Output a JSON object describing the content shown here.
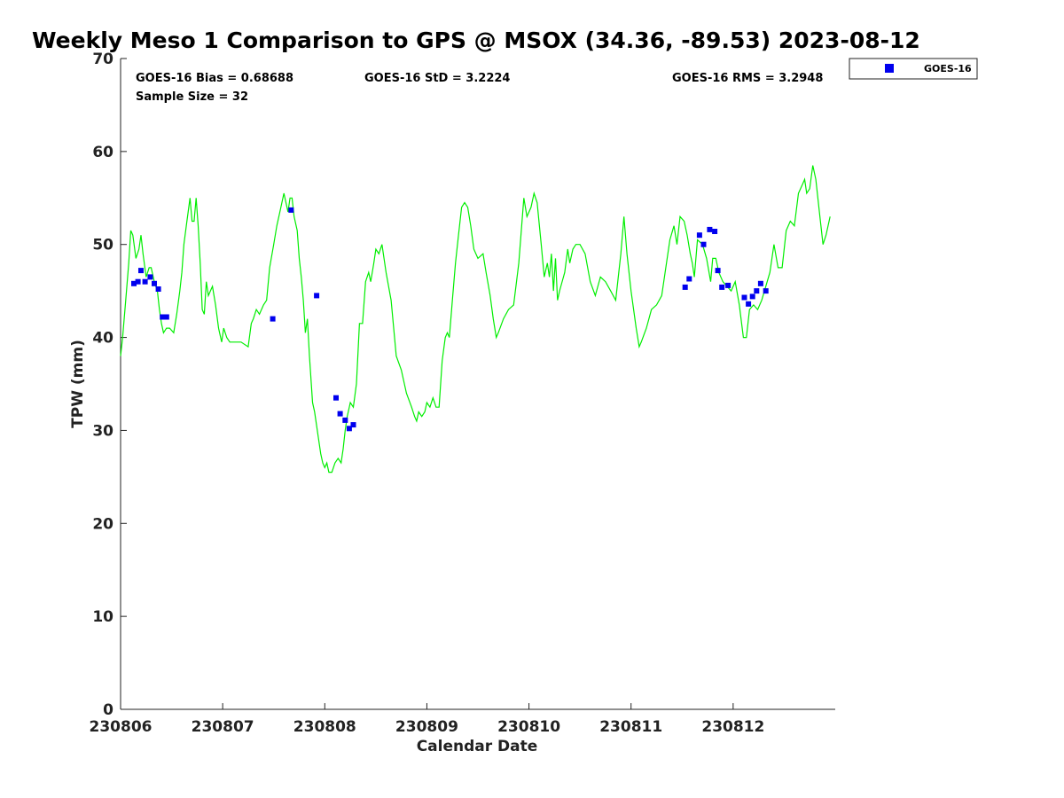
{
  "chart_data": {
    "type": "scatter",
    "title": "Weekly Meso 1 Comparison to GPS @ MSOX (34.36, -89.53) 2023-08-12",
    "xlabel": "Calendar Date",
    "ylabel": "TPW (mm)",
    "xlim": [
      0,
      7
    ],
    "ylim": [
      0,
      70
    ],
    "y_ticks": [
      0,
      10,
      20,
      30,
      40,
      50,
      60,
      70
    ],
    "x_ticks": [
      {
        "v": 0,
        "label": "230806"
      },
      {
        "v": 1,
        "label": "230807"
      },
      {
        "v": 2,
        "label": "230808"
      },
      {
        "v": 3,
        "label": "230809"
      },
      {
        "v": 4,
        "label": "230810"
      },
      {
        "v": 5,
        "label": "230811"
      },
      {
        "v": 6,
        "label": "230812"
      }
    ],
    "stats": {
      "bias": "GOES-16 Bias = 0.68688",
      "std": "GOES-16 StD = 3.2224",
      "rms": "GOES-16 RMS = 3.2948",
      "sample": "Sample Size = 32"
    },
    "legend": {
      "label": "GOES-16",
      "placement": "top-right-outside"
    },
    "series": [
      {
        "name": "GPS",
        "color": "#00ee00",
        "type": "line",
        "points": [
          [
            0.0,
            38
          ],
          [
            0.02,
            40
          ],
          [
            0.05,
            44
          ],
          [
            0.08,
            48
          ],
          [
            0.1,
            51.5
          ],
          [
            0.12,
            51
          ],
          [
            0.15,
            48.5
          ],
          [
            0.18,
            49.5
          ],
          [
            0.2,
            51
          ],
          [
            0.22,
            49
          ],
          [
            0.25,
            46.5
          ],
          [
            0.28,
            47.5
          ],
          [
            0.3,
            47.5
          ],
          [
            0.33,
            46
          ],
          [
            0.36,
            45
          ],
          [
            0.38,
            43
          ],
          [
            0.4,
            41.5
          ],
          [
            0.42,
            40.5
          ],
          [
            0.45,
            41
          ],
          [
            0.48,
            41
          ],
          [
            0.52,
            40.5
          ],
          [
            0.55,
            42.5
          ],
          [
            0.58,
            45
          ],
          [
            0.6,
            47
          ],
          [
            0.62,
            50
          ],
          [
            0.65,
            52.5
          ],
          [
            0.68,
            55
          ],
          [
            0.7,
            52.5
          ],
          [
            0.72,
            52.5
          ],
          [
            0.74,
            55
          ],
          [
            0.76,
            52
          ],
          [
            0.78,
            48
          ],
          [
            0.8,
            43
          ],
          [
            0.82,
            42.5
          ],
          [
            0.84,
            46
          ],
          [
            0.86,
            44.5
          ],
          [
            0.88,
            45
          ],
          [
            0.9,
            45.5
          ],
          [
            0.93,
            43.5
          ],
          [
            0.96,
            41
          ],
          [
            0.99,
            39.5
          ],
          [
            1.01,
            41
          ],
          [
            1.04,
            40
          ],
          [
            1.07,
            39.5
          ],
          [
            1.12,
            39.5
          ],
          [
            1.18,
            39.5
          ],
          [
            1.25,
            39
          ],
          [
            1.28,
            41.5
          ],
          [
            1.3,
            42
          ],
          [
            1.33,
            43
          ],
          [
            1.36,
            42.5
          ],
          [
            1.4,
            43.5
          ],
          [
            1.43,
            44
          ],
          [
            1.46,
            47.5
          ],
          [
            1.5,
            50
          ],
          [
            1.53,
            52
          ],
          [
            1.57,
            54
          ],
          [
            1.6,
            55.5
          ],
          [
            1.62,
            54.5
          ],
          [
            1.64,
            53.5
          ],
          [
            1.66,
            55
          ],
          [
            1.68,
            55
          ],
          [
            1.7,
            53
          ],
          [
            1.73,
            51.5
          ],
          [
            1.75,
            48.5
          ],
          [
            1.77,
            46.5
          ],
          [
            1.79,
            44
          ],
          [
            1.81,
            40.5
          ],
          [
            1.83,
            42
          ],
          [
            1.85,
            38
          ],
          [
            1.88,
            33
          ],
          [
            1.9,
            32
          ],
          [
            1.92,
            30.5
          ],
          [
            1.94,
            29
          ],
          [
            1.96,
            27.5
          ],
          [
            1.98,
            26.5
          ],
          [
            2.0,
            26
          ],
          [
            2.02,
            26.5
          ],
          [
            2.04,
            25.5
          ],
          [
            2.07,
            25.5
          ],
          [
            2.1,
            26.5
          ],
          [
            2.13,
            27
          ],
          [
            2.16,
            26.5
          ],
          [
            2.18,
            28
          ],
          [
            2.2,
            30
          ],
          [
            2.22,
            31.5
          ],
          [
            2.25,
            33
          ],
          [
            2.28,
            32.5
          ],
          [
            2.31,
            35
          ],
          [
            2.34,
            41.5
          ],
          [
            2.37,
            41.5
          ],
          [
            2.4,
            46
          ],
          [
            2.43,
            47
          ],
          [
            2.45,
            46
          ],
          [
            2.48,
            48
          ],
          [
            2.5,
            49.5
          ],
          [
            2.53,
            49
          ],
          [
            2.56,
            50
          ],
          [
            2.6,
            47
          ],
          [
            2.65,
            44
          ],
          [
            2.7,
            38
          ],
          [
            2.75,
            36.5
          ],
          [
            2.8,
            34
          ],
          [
            2.85,
            32.5
          ],
          [
            2.88,
            31.5
          ],
          [
            2.9,
            31
          ],
          [
            2.92,
            32
          ],
          [
            2.95,
            31.5
          ],
          [
            2.98,
            32
          ],
          [
            3.0,
            33
          ],
          [
            3.03,
            32.5
          ],
          [
            3.06,
            33.5
          ],
          [
            3.09,
            32.5
          ],
          [
            3.12,
            32.5
          ],
          [
            3.15,
            37.5
          ],
          [
            3.18,
            40
          ],
          [
            3.2,
            40.5
          ],
          [
            3.22,
            40
          ],
          [
            3.25,
            44
          ],
          [
            3.28,
            48
          ],
          [
            3.31,
            51
          ],
          [
            3.34,
            54
          ],
          [
            3.37,
            54.5
          ],
          [
            3.4,
            54
          ],
          [
            3.43,
            52
          ],
          [
            3.46,
            49.5
          ],
          [
            3.5,
            48.5
          ],
          [
            3.55,
            49
          ],
          [
            3.58,
            47
          ],
          [
            3.62,
            44.5
          ],
          [
            3.65,
            42
          ],
          [
            3.68,
            40
          ],
          [
            3.7,
            40.5
          ],
          [
            3.75,
            42
          ],
          [
            3.8,
            43
          ],
          [
            3.85,
            43.5
          ],
          [
            3.9,
            48
          ],
          [
            3.95,
            55
          ],
          [
            3.98,
            53
          ],
          [
            4.02,
            54
          ],
          [
            4.05,
            55.5
          ],
          [
            4.08,
            54.5
          ],
          [
            4.12,
            50
          ],
          [
            4.15,
            46.5
          ],
          [
            4.18,
            48
          ],
          [
            4.2,
            46.5
          ],
          [
            4.22,
            49
          ],
          [
            4.24,
            45
          ],
          [
            4.26,
            48.5
          ],
          [
            4.28,
            44
          ],
          [
            4.3,
            45
          ],
          [
            4.35,
            47
          ],
          [
            4.38,
            49.5
          ],
          [
            4.4,
            48
          ],
          [
            4.43,
            49.5
          ],
          [
            4.46,
            50
          ],
          [
            4.5,
            50
          ],
          [
            4.55,
            49
          ],
          [
            4.6,
            46
          ],
          [
            4.65,
            44.5
          ],
          [
            4.7,
            46.5
          ],
          [
            4.75,
            46
          ],
          [
            4.8,
            45
          ],
          [
            4.85,
            44
          ],
          [
            4.9,
            49
          ],
          [
            4.93,
            53
          ],
          [
            4.96,
            49
          ],
          [
            5.0,
            45
          ],
          [
            5.05,
            41
          ],
          [
            5.08,
            39
          ],
          [
            5.1,
            39.5
          ],
          [
            5.15,
            41
          ],
          [
            5.2,
            43
          ],
          [
            5.25,
            43.5
          ],
          [
            5.3,
            44.5
          ],
          [
            5.34,
            47.5
          ],
          [
            5.38,
            50.5
          ],
          [
            5.42,
            52
          ],
          [
            5.45,
            50
          ],
          [
            5.48,
            53
          ],
          [
            5.52,
            52.5
          ],
          [
            5.55,
            51
          ],
          [
            5.58,
            49
          ],
          [
            5.6,
            48
          ],
          [
            5.62,
            46.5
          ],
          [
            5.65,
            50.5
          ],
          [
            5.7,
            50
          ],
          [
            5.74,
            48.5
          ],
          [
            5.78,
            46
          ],
          [
            5.8,
            48.5
          ],
          [
            5.83,
            48.5
          ],
          [
            5.86,
            47
          ],
          [
            5.9,
            46
          ],
          [
            5.94,
            45.5
          ],
          [
            5.98,
            45
          ],
          [
            6.02,
            46
          ],
          [
            6.06,
            43.5
          ],
          [
            6.1,
            40
          ],
          [
            6.13,
            40
          ],
          [
            6.16,
            43
          ],
          [
            6.2,
            43.5
          ],
          [
            6.24,
            43
          ],
          [
            6.28,
            44
          ],
          [
            6.32,
            45.5
          ],
          [
            6.36,
            47
          ],
          [
            6.4,
            50
          ],
          [
            6.44,
            47.5
          ],
          [
            6.48,
            47.5
          ],
          [
            6.52,
            51.5
          ],
          [
            6.56,
            52.5
          ],
          [
            6.6,
            52
          ],
          [
            6.64,
            55.5
          ],
          [
            6.68,
            56.5
          ],
          [
            6.7,
            57
          ],
          [
            6.72,
            55.5
          ],
          [
            6.75,
            56
          ],
          [
            6.78,
            58.5
          ],
          [
            6.81,
            57
          ],
          [
            6.85,
            53
          ],
          [
            6.88,
            50
          ],
          [
            6.91,
            51
          ],
          [
            6.95,
            53
          ]
        ]
      },
      {
        "name": "GOES-16",
        "color": "#0000ee",
        "type": "scatter",
        "points": [
          [
            0.13,
            45.8
          ],
          [
            0.17,
            46
          ],
          [
            0.2,
            47.2
          ],
          [
            0.24,
            46
          ],
          [
            0.29,
            46.5
          ],
          [
            0.33,
            45.8
          ],
          [
            0.37,
            45.2
          ],
          [
            0.41,
            42.2
          ],
          [
            0.45,
            42.2
          ],
          [
            1.49,
            42
          ],
          [
            1.67,
            53.7
          ],
          [
            1.92,
            44.5
          ],
          [
            2.11,
            33.5
          ],
          [
            2.15,
            31.8
          ],
          [
            2.2,
            31.1
          ],
          [
            2.24,
            30.2
          ],
          [
            2.28,
            30.6
          ],
          [
            5.53,
            45.4
          ],
          [
            5.57,
            46.3
          ],
          [
            5.67,
            51
          ],
          [
            5.71,
            50
          ],
          [
            5.77,
            51.6
          ],
          [
            5.82,
            51.4
          ],
          [
            5.85,
            47.2
          ],
          [
            5.89,
            45.4
          ],
          [
            5.95,
            45.6
          ],
          [
            6.11,
            44.3
          ],
          [
            6.15,
            43.6
          ],
          [
            6.19,
            44.4
          ],
          [
            6.23,
            45
          ],
          [
            6.27,
            45.8
          ],
          [
            6.32,
            45
          ]
        ]
      }
    ]
  }
}
